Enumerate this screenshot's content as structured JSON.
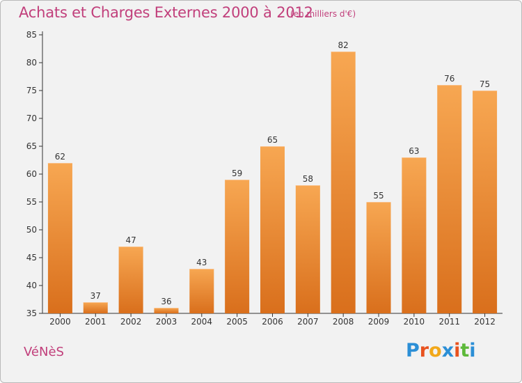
{
  "header": {
    "title": "Achats et Charges Externes 2000 à 2012",
    "unit": "(en milliers d'€)"
  },
  "footer": {
    "commune": "VéNèS",
    "logo": {
      "letters": [
        "P",
        "r",
        "o",
        "x",
        "i",
        "t",
        "i"
      ],
      "colors": [
        "#2c8fd6",
        "#e8521f",
        "#f2a81a",
        "#2c8fd6",
        "#e8521f",
        "#5db93a",
        "#2c8fd6"
      ]
    }
  },
  "colors": {
    "bar_top": "#f7a752",
    "bar_bottom": "#d96f1c",
    "axis": "#333333",
    "grid": "#cccccc"
  },
  "chart_data": {
    "type": "bar",
    "categories": [
      "2000",
      "2001",
      "2002",
      "2003",
      "2004",
      "2005",
      "2006",
      "2007",
      "2008",
      "2009",
      "2010",
      "2011",
      "2012"
    ],
    "values": [
      62,
      37,
      47,
      36,
      43,
      59,
      65,
      58,
      82,
      55,
      63,
      76,
      75
    ],
    "title": "Achats et Charges Externes 2000 à 2012",
    "unit": "(en milliers d'€)",
    "ylim": [
      35,
      85
    ],
    "yticks": [
      35,
      40,
      45,
      50,
      55,
      60,
      65,
      70,
      75,
      80,
      85
    ],
    "grid": false,
    "data_labels": true
  }
}
